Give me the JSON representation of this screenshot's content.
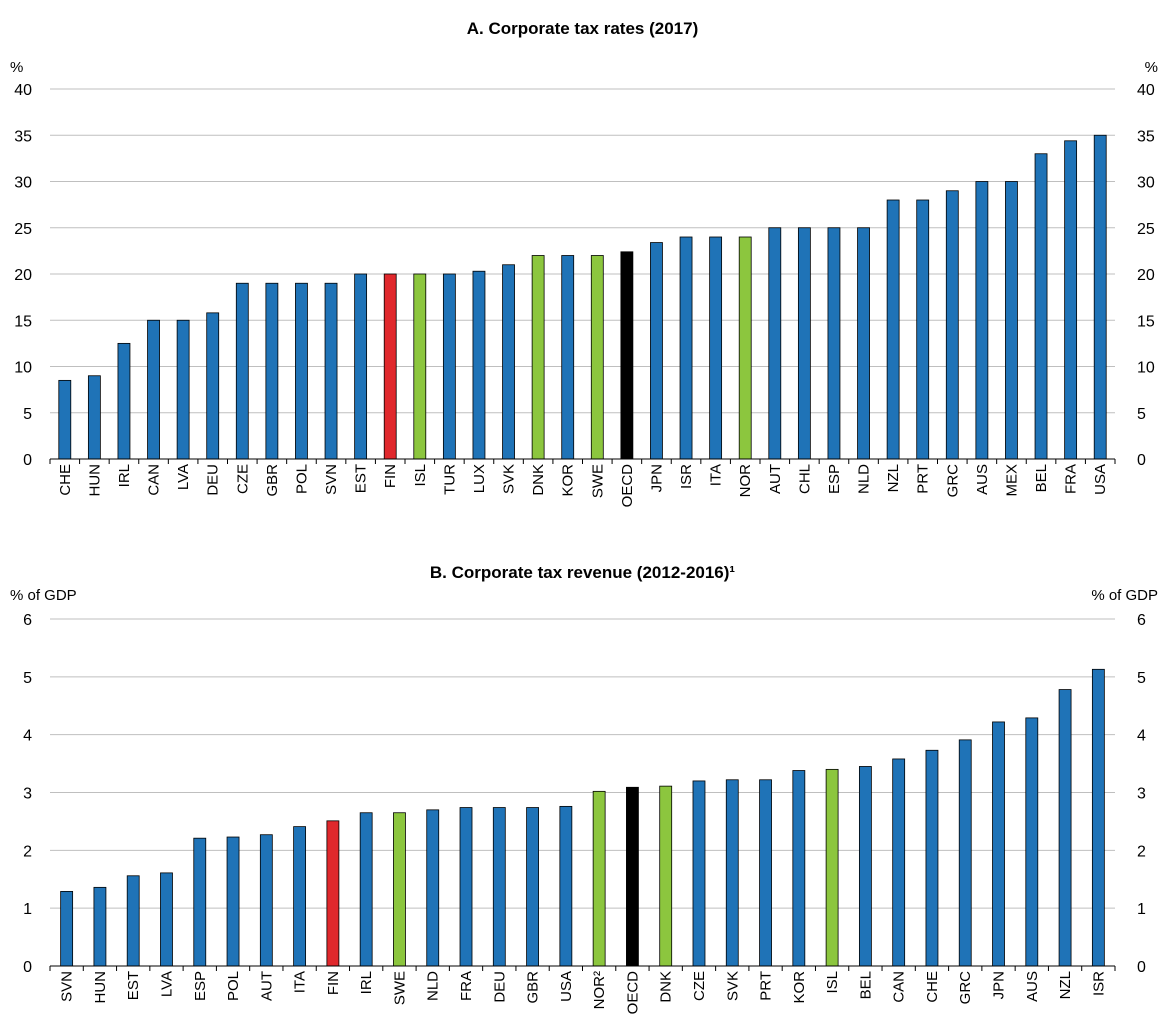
{
  "colors": {
    "default": "#1f73b7",
    "finland": "#e0282c",
    "nordic": "#8cc63e",
    "oecd": "#000000",
    "grid": "#bfbfbf",
    "axis": "#000000"
  },
  "chart_data": [
    {
      "type": "bar",
      "title": "A. Corporate tax rates (2017)",
      "unit_left": "%",
      "unit_right": "%",
      "ylim": [
        0,
        40
      ],
      "yticks": [
        0,
        5,
        10,
        15,
        20,
        25,
        30,
        35,
        40
      ],
      "grid": true,
      "categories": [
        "CHE",
        "HUN",
        "IRL",
        "CAN",
        "LVA",
        "DEU",
        "CZE",
        "GBR",
        "POL",
        "SVN",
        "EST",
        "FIN",
        "ISL",
        "TUR",
        "LUX",
        "SVK",
        "DNK",
        "KOR",
        "SWE",
        "OECD",
        "JPN",
        "ISR",
        "ITA",
        "NOR",
        "AUT",
        "CHL",
        "ESP",
        "NLD",
        "NZL",
        "PRT",
        "GRC",
        "AUS",
        "MEX",
        "BEL",
        "FRA",
        "USA"
      ],
      "values": [
        8.5,
        9,
        12.5,
        15,
        15,
        15.8,
        19,
        19,
        19,
        19,
        20,
        20,
        20,
        20,
        20.3,
        21,
        22,
        22,
        22,
        22.4,
        23.4,
        24,
        24,
        24,
        25,
        25,
        25,
        25,
        28,
        28,
        29,
        30,
        30,
        33,
        34.4,
        35
      ],
      "bar_colors": [
        "default",
        "default",
        "default",
        "default",
        "default",
        "default",
        "default",
        "default",
        "default",
        "default",
        "default",
        "finland",
        "nordic",
        "default",
        "default",
        "default",
        "nordic",
        "default",
        "nordic",
        "oecd",
        "default",
        "default",
        "default",
        "nordic",
        "default",
        "default",
        "default",
        "default",
        "default",
        "default",
        "default",
        "default",
        "default",
        "default",
        "default",
        "default"
      ]
    },
    {
      "type": "bar",
      "title": "B. Corporate tax revenue (2012-2016)¹",
      "unit_left": "% of GDP",
      "unit_right": "% of GDP",
      "ylim": [
        0,
        6
      ],
      "yticks": [
        0,
        1,
        2,
        3,
        4,
        5,
        6
      ],
      "grid": true,
      "categories": [
        "SVN",
        "HUN",
        "EST",
        "LVA",
        "ESP",
        "POL",
        "AUT",
        "ITA",
        "FIN",
        "IRL",
        "SWE",
        "NLD",
        "FRA",
        "DEU",
        "GBR",
        "USA",
        "NOR²",
        "OECD",
        "DNK",
        "CZE",
        "SVK",
        "PRT",
        "KOR",
        "ISL",
        "BEL",
        "CAN",
        "CHE",
        "GRC",
        "JPN",
        "AUS",
        "NZL",
        "ISR"
      ],
      "values": [
        1.29,
        1.36,
        1.56,
        1.61,
        2.21,
        2.23,
        2.27,
        2.41,
        2.51,
        2.65,
        2.65,
        2.7,
        2.74,
        2.74,
        2.74,
        2.76,
        3.02,
        3.09,
        3.11,
        3.2,
        3.22,
        3.22,
        3.38,
        3.4,
        3.45,
        3.58,
        3.73,
        3.91,
        4.22,
        4.29,
        4.78,
        5.13
      ],
      "bar_colors": [
        "default",
        "default",
        "default",
        "default",
        "default",
        "default",
        "default",
        "default",
        "finland",
        "default",
        "nordic",
        "default",
        "default",
        "default",
        "default",
        "default",
        "nordic",
        "oecd",
        "nordic",
        "default",
        "default",
        "default",
        "default",
        "nordic",
        "default",
        "default",
        "default",
        "default",
        "default",
        "default",
        "default",
        "default"
      ]
    }
  ]
}
